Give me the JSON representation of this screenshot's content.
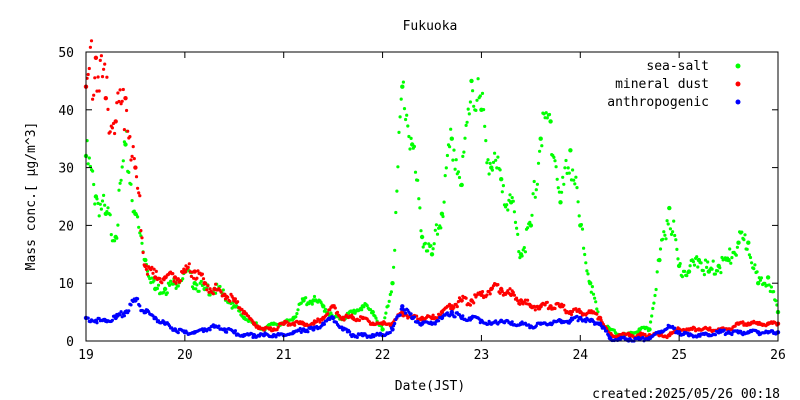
{
  "footer": {
    "created": "created:2025/05/26 00:18"
  },
  "chart_data": {
    "type": "scatter",
    "title": "Fukuoka",
    "xlabel": "Date(JST)",
    "ylabel": "Mass conc.[ μg/m^3]",
    "xlim": [
      19,
      26
    ],
    "ylim": [
      0,
      50
    ],
    "xticks": [
      "19",
      "20",
      "21",
      "22",
      "23",
      "24",
      "25",
      "26"
    ],
    "yticks": [
      "0",
      "10",
      "20",
      "30",
      "40",
      "50"
    ],
    "legend_position": "top-right",
    "grid": false,
    "series": [
      {
        "name": "sea-salt",
        "color": "#00ff00",
        "x": [
          19.0,
          19.1,
          19.2,
          19.3,
          19.4,
          19.5,
          19.6,
          19.7,
          19.8,
          19.9,
          20.0,
          20.1,
          20.2,
          20.3,
          20.4,
          20.5,
          20.6,
          20.7,
          20.8,
          20.9,
          21.0,
          21.1,
          21.2,
          21.3,
          21.4,
          21.5,
          21.6,
          21.7,
          21.8,
          21.9,
          22.0,
          22.1,
          22.2,
          22.3,
          22.4,
          22.5,
          22.6,
          22.7,
          22.8,
          22.9,
          23.0,
          23.1,
          23.2,
          23.3,
          23.4,
          23.5,
          23.6,
          23.7,
          23.8,
          23.9,
          24.0,
          24.1,
          24.2,
          24.3,
          24.4,
          24.5,
          24.6,
          24.7,
          24.8,
          24.9,
          25.0,
          25.1,
          25.2,
          25.3,
          25.4,
          25.5,
          25.6,
          25.7,
          25.8,
          25.9,
          26.0
        ],
        "values": [
          32,
          25,
          22,
          18,
          34,
          22,
          14,
          9,
          9,
          10,
          12,
          10,
          9,
          9,
          8,
          6,
          4,
          3,
          2,
          3,
          3,
          4,
          7,
          7,
          6,
          4,
          4,
          5,
          6,
          5,
          2,
          10,
          44,
          34,
          18,
          15,
          22,
          35,
          27,
          45,
          40,
          30,
          28,
          24,
          15,
          20,
          35,
          38,
          24,
          33,
          20,
          10,
          3,
          2,
          1,
          1,
          2,
          2,
          14,
          23,
          13,
          12,
          14,
          12,
          13,
          14,
          17,
          17,
          10,
          11,
          5
        ]
      },
      {
        "name": "mineral dust",
        "color": "#ff0000",
        "x": [
          19.0,
          19.1,
          19.2,
          19.3,
          19.4,
          19.5,
          19.6,
          19.7,
          19.8,
          19.9,
          20.0,
          20.1,
          20.2,
          20.3,
          20.4,
          20.5,
          20.6,
          20.7,
          20.8,
          20.9,
          21.0,
          21.1,
          21.2,
          21.3,
          21.4,
          21.5,
          21.6,
          21.7,
          21.8,
          21.9,
          22.0,
          22.1,
          22.2,
          22.3,
          22.4,
          22.5,
          22.6,
          22.7,
          22.8,
          22.9,
          23.0,
          23.1,
          23.2,
          23.3,
          23.4,
          23.5,
          23.6,
          23.7,
          23.8,
          23.9,
          24.0,
          24.1,
          24.2,
          24.3,
          24.4,
          24.5,
          24.6,
          24.7,
          24.8,
          24.9,
          25.0,
          25.1,
          25.2,
          25.3,
          25.4,
          25.5,
          25.6,
          25.7,
          25.8,
          25.9,
          26.0
        ],
        "values": [
          44,
          49,
          42,
          38,
          42,
          30,
          13,
          11,
          11,
          11,
          12,
          12,
          10,
          9,
          8,
          7,
          5,
          3,
          2,
          2,
          3,
          3,
          3,
          3,
          4,
          6,
          4,
          4,
          4,
          3,
          3,
          3,
          5,
          4,
          4,
          4,
          5,
          6,
          7,
          7,
          8,
          9,
          9,
          8,
          7,
          6,
          6,
          6,
          6,
          5,
          5,
          5,
          4,
          1,
          1,
          1,
          1,
          1,
          1,
          1,
          2,
          2,
          2,
          2,
          2,
          2,
          3,
          3,
          3,
          3,
          3
        ]
      },
      {
        "name": "anthropogenic",
        "color": "#0000ff",
        "x": [
          19.0,
          19.1,
          19.2,
          19.3,
          19.4,
          19.5,
          19.6,
          19.7,
          19.8,
          19.9,
          20.0,
          20.1,
          20.2,
          20.3,
          20.4,
          20.5,
          20.6,
          20.7,
          20.8,
          20.9,
          21.0,
          21.1,
          21.2,
          21.3,
          21.4,
          21.5,
          21.6,
          21.7,
          21.8,
          21.9,
          22.0,
          22.1,
          22.2,
          22.3,
          22.4,
          22.5,
          22.6,
          22.7,
          22.8,
          22.9,
          23.0,
          23.1,
          23.2,
          23.3,
          23.4,
          23.5,
          23.6,
          23.7,
          23.8,
          23.9,
          24.0,
          24.1,
          24.2,
          24.3,
          24.4,
          24.5,
          24.6,
          24.7,
          24.8,
          24.9,
          25.0,
          25.1,
          25.2,
          25.3,
          25.4,
          25.5,
          25.6,
          25.7,
          25.8,
          25.9,
          26.0
        ],
        "values": [
          4,
          3.5,
          3.5,
          4,
          5,
          7,
          5,
          4,
          3,
          2,
          1.5,
          1.5,
          2,
          2.5,
          2,
          1.5,
          1,
          1,
          1,
          1,
          1,
          1.5,
          2,
          2,
          3,
          4,
          2,
          1,
          1,
          1,
          1,
          2,
          6,
          4,
          3,
          3,
          4,
          5,
          4,
          4,
          3.5,
          3,
          3.5,
          3,
          3,
          2.5,
          3,
          3,
          3.5,
          3.5,
          4,
          3.5,
          3,
          0.5,
          0.3,
          0.3,
          0.3,
          0.5,
          1.5,
          2.5,
          1.5,
          1,
          1,
          1,
          1.5,
          1.5,
          1.5,
          1.5,
          1.5,
          1.5,
          1.5
        ]
      }
    ]
  }
}
